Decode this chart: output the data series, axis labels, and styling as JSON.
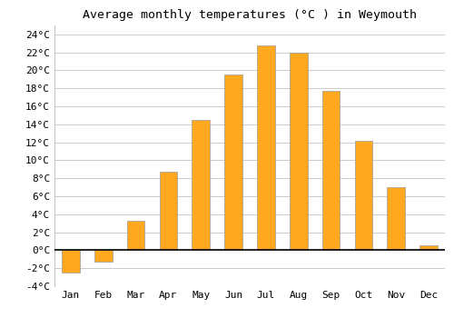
{
  "title": "Average monthly temperatures (°C ) in Weymouth",
  "months": [
    "Jan",
    "Feb",
    "Mar",
    "Apr",
    "May",
    "Jun",
    "Jul",
    "Aug",
    "Sep",
    "Oct",
    "Nov",
    "Dec"
  ],
  "values": [
    -2.5,
    -1.3,
    3.3,
    8.7,
    14.5,
    19.5,
    22.8,
    22.0,
    17.7,
    12.2,
    7.0,
    0.5
  ],
  "bar_color": "#FFA820",
  "bar_edge_color": "#999999",
  "ylim": [
    -4,
    25
  ],
  "yticks": [
    -4,
    -2,
    0,
    2,
    4,
    6,
    8,
    10,
    12,
    14,
    16,
    18,
    20,
    22,
    24
  ],
  "background_color": "#ffffff",
  "grid_color": "#cccccc",
  "title_fontsize": 9.5,
  "tick_fontsize": 8,
  "font_family": "monospace",
  "bar_width": 0.55
}
